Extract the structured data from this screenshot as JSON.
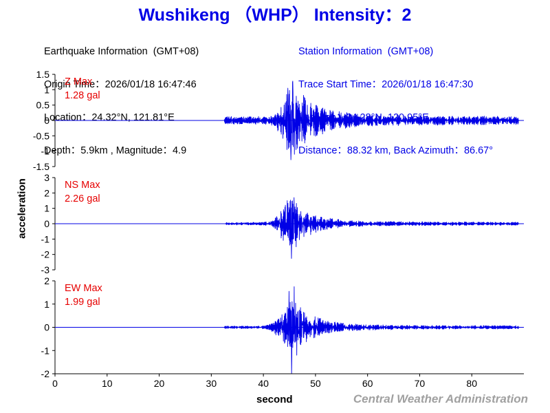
{
  "header": {
    "title": "Wushikeng （WHP） Intensity：2",
    "earthquake": {
      "heading": "Earthquake Information  (GMT+08)",
      "origin_time": "Origin Time：2026/01/18 16:47:46",
      "location": "Location：24.32°N, 121.81°E",
      "depth_magnitude": "Depth：5.9km , Magnitude：4.9"
    },
    "station": {
      "heading": "Station Information  (GMT+08)",
      "trace_start": "Trace Start Time：2026/01/18 16:47:30",
      "location": "Location：24.28°N, 120.95°E",
      "distance": "Distance：88.32 km, Back Azimuth：86.67°"
    }
  },
  "credit": "Central Weather Administration",
  "colors": {
    "title": "#0000e6",
    "trace": "#0000e6",
    "max_label": "#e60000",
    "credit": "#a0a0a0"
  },
  "chart_data": {
    "type": "line",
    "xlabel": "second",
    "ylabel": "acceleration",
    "xlim": [
      0,
      90
    ],
    "xticks": [
      0,
      10,
      20,
      30,
      40,
      50,
      60,
      70,
      80
    ],
    "panels": [
      {
        "name": "Z",
        "max_label": "Z Max",
        "max_value": "1.28 gal",
        "ylim": [
          -1.5,
          1.5
        ],
        "yticks": [
          1.5,
          1,
          0.5,
          0,
          -0.5,
          -1,
          -1.5
        ],
        "seed": 11,
        "envelope": {
          "onset": 32.5,
          "noise": 0.13,
          "peak_time": 45.5,
          "peak_amp": 1.15,
          "rise": 2.2,
          "decay": 3.8,
          "coda": 0.09,
          "coda_decay": 22
        },
        "spikes": [
          {
            "t": 45.65,
            "v": 1.28
          },
          {
            "t": 45.3,
            "v": -1.28
          },
          {
            "t": 44.7,
            "v": 1.05
          },
          {
            "t": 45.95,
            "v": -1.1
          }
        ]
      },
      {
        "name": "NS",
        "max_label": "NS Max",
        "max_value": "2.26 gal",
        "ylim": [
          -3,
          3
        ],
        "yticks": [
          3,
          2,
          1,
          0,
          -1,
          -2,
          -3
        ],
        "seed": 23,
        "envelope": {
          "onset": 32.7,
          "noise": 0.09,
          "peak_time": 45.3,
          "peak_amp": 1.5,
          "rise": 2.6,
          "decay": 3.6,
          "coda": 0.12,
          "coda_decay": 22
        },
        "spikes": [
          {
            "t": 45.9,
            "v": 1.7
          },
          {
            "t": 45.4,
            "v": -2.26
          },
          {
            "t": 44.6,
            "v": 1.5
          },
          {
            "t": 46.3,
            "v": -1.5
          }
        ]
      },
      {
        "name": "EW",
        "max_label": "EW Max",
        "max_value": "1.99 gal",
        "ylim": [
          -2,
          2
        ],
        "yticks": [
          2,
          1,
          0,
          -1,
          -2
        ],
        "seed": 37,
        "envelope": {
          "onset": 32.5,
          "noise": 0.06,
          "peak_time": 45.4,
          "peak_amp": 1.2,
          "rise": 2.5,
          "decay": 3.6,
          "coda": 0.1,
          "coda_decay": 24
        },
        "spikes": [
          {
            "t": 45.9,
            "v": 1.75
          },
          {
            "t": 45.4,
            "v": -1.99
          },
          {
            "t": 44.9,
            "v": 1.55
          },
          {
            "t": 46.4,
            "v": -1.2
          }
        ]
      }
    ]
  }
}
